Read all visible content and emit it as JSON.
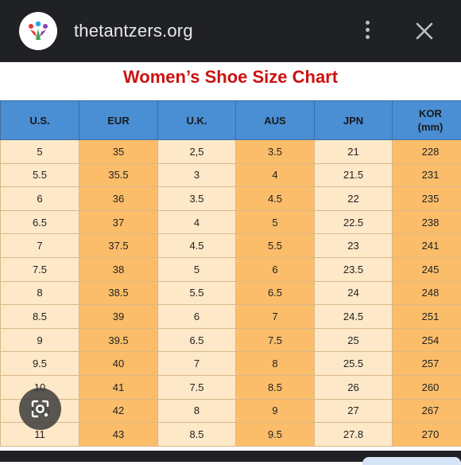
{
  "browser": {
    "url": "thetantzers.org",
    "favicon": "favicon-logo-icon",
    "menu_icon": "more-vert-icon",
    "close_icon": "close-icon"
  },
  "page": {
    "title": "Women’s Shoe Size Chart"
  },
  "table": {
    "headers": [
      "U.S.",
      "EUR",
      "U.K.",
      "AUS",
      "JPN",
      "KOR\n(mm)"
    ],
    "rows": [
      [
        "5",
        "35",
        "2,5",
        "3.5",
        "21",
        "228"
      ],
      [
        "5.5",
        "35.5",
        "3",
        "4",
        "21.5",
        "231"
      ],
      [
        "6",
        "36",
        "3.5",
        "4.5",
        "22",
        "235"
      ],
      [
        "6.5",
        "37",
        "4",
        "5",
        "22.5",
        "238"
      ],
      [
        "7",
        "37.5",
        "4.5",
        "5.5",
        "23",
        "241"
      ],
      [
        "7.5",
        "38",
        "5",
        "6",
        "23.5",
        "245"
      ],
      [
        "8",
        "38.5",
        "5.5",
        "6.5",
        "24",
        "248"
      ],
      [
        "8.5",
        "39",
        "6",
        "7",
        "24.5",
        "251"
      ],
      [
        "9",
        "39.5",
        "6.5",
        "7.5",
        "25",
        "254"
      ],
      [
        "9.5",
        "40",
        "7",
        "8",
        "25.5",
        "257"
      ],
      [
        "10",
        "41",
        "7.5",
        "8.5",
        "26",
        "260"
      ],
      [
        "10.5",
        "42",
        "8",
        "9",
        "27",
        "267"
      ],
      [
        "11",
        "43",
        "8.5",
        "9.5",
        "27.8",
        "270"
      ]
    ]
  },
  "overlay": {
    "lens_icon": "lens-camera-icon"
  },
  "colors": {
    "topbar": "#202124",
    "title": "#cc1111",
    "header": "#4a8ed4",
    "light_col": "#fde8c8",
    "dark_col": "#fbbd6a"
  }
}
